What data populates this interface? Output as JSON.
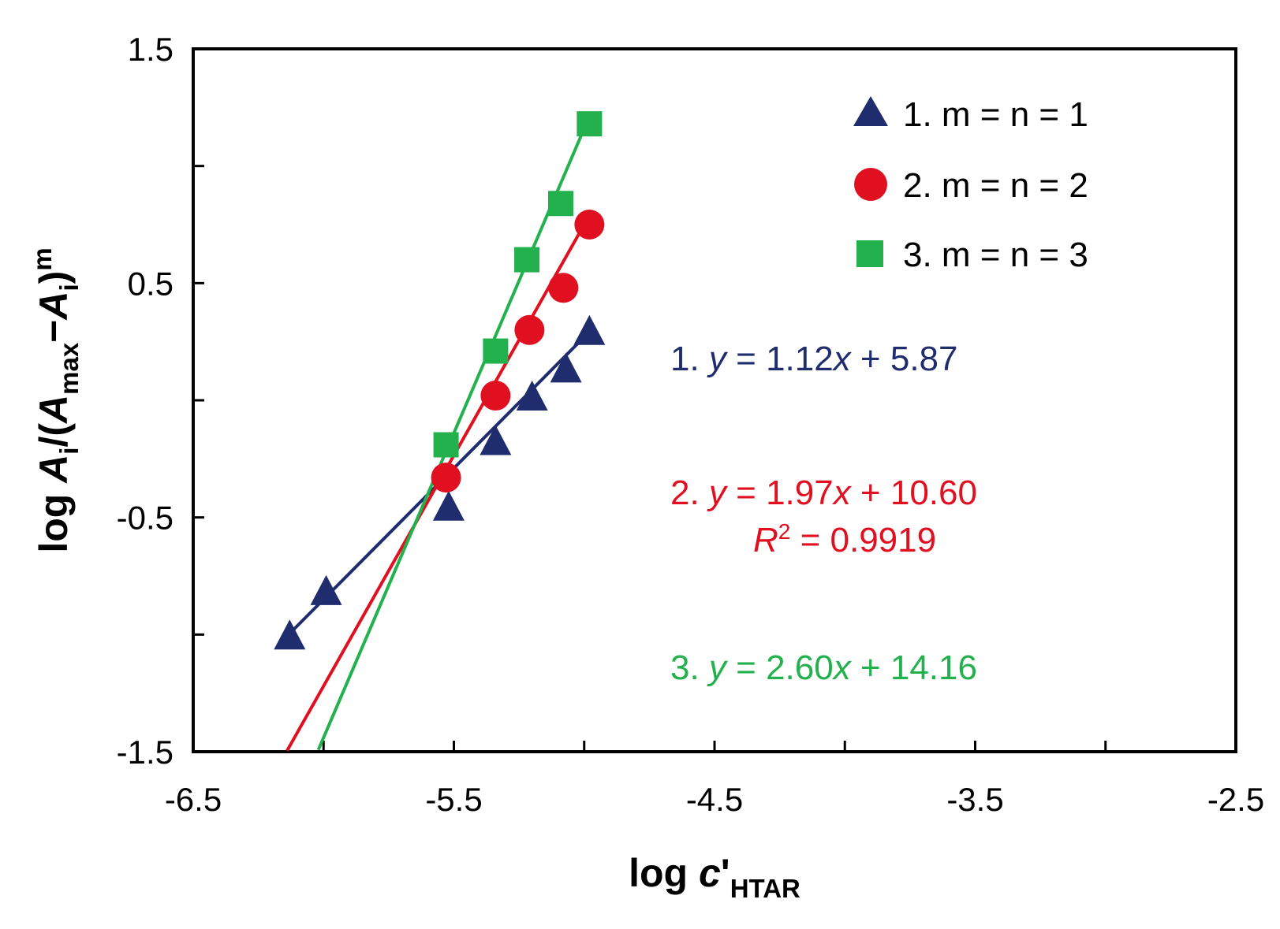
{
  "chart_data": {
    "type": "scatter",
    "xlabel": {
      "prefix": "log ",
      "var": "c",
      "prime": "'",
      "sub": "HTAR"
    },
    "ylabel": {
      "prefix": "log ",
      "A": "A",
      "sub_i": "i",
      "mid": "/(",
      "A2": "A",
      "sub_max": "max",
      "dash": "−",
      "A3": "A",
      "sub_i2": "i",
      "close": ")",
      "sup_m": "m"
    },
    "xlim": [
      -6.5,
      -2.5
    ],
    "ylim": [
      -1.5,
      1.5
    ],
    "xticks": [
      -6.5,
      -5.5,
      -4.5,
      -3.5,
      -2.5
    ],
    "xtick_labels": [
      "-6.5",
      "-5.5",
      "-4.5",
      "-3.5",
      "-2.5"
    ],
    "minor_xticks": [
      -6.0,
      -5.0,
      -4.0,
      -3.0
    ],
    "yticks": [
      -1.5,
      -0.5,
      0.5,
      1.5
    ],
    "ytick_labels": [
      "-1.5",
      "-0.5",
      "0.5",
      "1.5"
    ],
    "minor_yticks": [
      -1.0,
      0.0,
      1.0
    ],
    "grid": false,
    "legend_position": "top-right",
    "series": [
      {
        "name": "1. m = n = 1",
        "marker": "triangle",
        "color": "#1f2d6e",
        "x": [
          -6.13,
          -5.99,
          -5.52,
          -5.34,
          -5.2,
          -5.07,
          -4.98
        ],
        "y": [
          -1.01,
          -0.82,
          -0.46,
          -0.18,
          0.01,
          0.13,
          0.29
        ],
        "fit": {
          "slope": 1.12,
          "intercept": 5.87,
          "x_range": [
            -6.13,
            -4.98
          ]
        },
        "equation": {
          "prefix": "1. ",
          "y": "y",
          "mid": " = 1.12",
          "x": "x",
          "suffix": " + 5.87"
        }
      },
      {
        "name": "2. m = n = 2",
        "marker": "circle",
        "color": "#e01020",
        "x": [
          -5.53,
          -5.34,
          -5.21,
          -5.08,
          -4.98
        ],
        "y": [
          -0.33,
          0.02,
          0.3,
          0.48,
          0.75
        ],
        "fit": {
          "slope": 1.97,
          "intercept": 10.6,
          "x_range": [
            -6.14,
            -4.98
          ]
        },
        "equation": {
          "prefix": "2. ",
          "y": "y",
          "mid": " = 1.97",
          "x": "x",
          "suffix": " + 10.60"
        },
        "r2": {
          "R": "R",
          "sup": "2",
          "rest": " = 0.9919"
        }
      },
      {
        "name": "3. m = n = 3",
        "marker": "square",
        "color": "#22b14c",
        "x": [
          -5.53,
          -5.34,
          -5.22,
          -5.09,
          -4.98
        ],
        "y": [
          -0.19,
          0.21,
          0.6,
          0.84,
          1.18
        ],
        "fit": {
          "slope": 2.6,
          "intercept": 14.16,
          "x_range": [
            -6.02,
            -4.98
          ]
        },
        "equation": {
          "prefix": "3. ",
          "y": "y",
          "mid": " = 2.60",
          "x": "x",
          "suffix": " + 14.16"
        }
      }
    ]
  },
  "colors": {
    "axis": "#000000",
    "background": "#ffffff"
  }
}
